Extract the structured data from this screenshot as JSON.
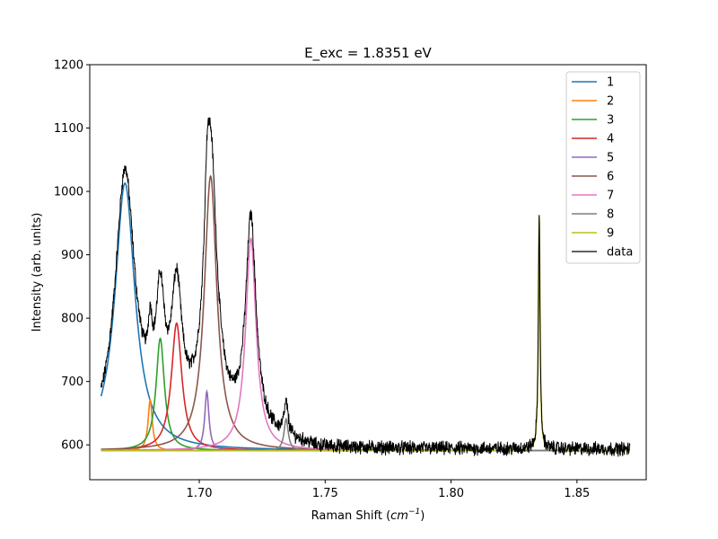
{
  "chart_data": {
    "type": "line",
    "title": "E_exc = 1.8351 eV",
    "xlabel": "Raman Shift (",
    "xlabel_unit": "cm",
    "xlabel_sup": "−1",
    "xlabel_close": ")",
    "ylabel": "Intensity (arb. units)",
    "xlim": [
      1.6565,
      1.8775
    ],
    "ylim": [
      545,
      1200
    ],
    "x_ticks": [
      1.7,
      1.75,
      1.8,
      1.85
    ],
    "x_tick_labels": [
      "1.70",
      "1.75",
      "1.80",
      "1.85"
    ],
    "y_ticks": [
      600,
      700,
      800,
      900,
      1000,
      1100,
      1200
    ],
    "y_tick_labels": [
      "600",
      "700",
      "800",
      "900",
      "1000",
      "1100",
      "1200"
    ],
    "grid": false,
    "legend_position": "top-right",
    "x_range": [
      1.661,
      1.871
    ],
    "baseline": 591,
    "series": [
      {
        "name": "1",
        "color": "#1f77b4",
        "center": 1.6705,
        "height": 422,
        "width": 0.0048
      },
      {
        "name": "2",
        "color": "#ff7f0e",
        "center": 1.6805,
        "height": 80,
        "width": 0.001
      },
      {
        "name": "3",
        "color": "#2ca02c",
        "center": 1.6845,
        "height": 177,
        "width": 0.002
      },
      {
        "name": "4",
        "color": "#d62728",
        "center": 1.691,
        "height": 201,
        "width": 0.0025
      },
      {
        "name": "5",
        "color": "#9467bd",
        "center": 1.703,
        "height": 93,
        "width": 0.001
      },
      {
        "name": "6",
        "color": "#8c564b",
        "center": 1.7045,
        "height": 433,
        "width": 0.003
      },
      {
        "name": "7",
        "color": "#e377c2",
        "center": 1.7205,
        "height": 335,
        "width": 0.0025
      },
      {
        "name": "8",
        "color": "#7f7f7f",
        "center": 1.7345,
        "height": 50,
        "width": 0.001
      },
      {
        "name": "9",
        "color": "#bcbd22",
        "center": 1.835,
        "height": 370,
        "width": 0.0004
      }
    ],
    "data_series": {
      "name": "data",
      "color": "#000000"
    }
  }
}
